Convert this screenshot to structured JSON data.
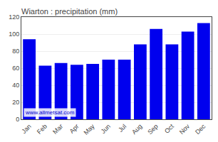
{
  "chart_data": {
    "type": "bar",
    "title": "Wiarton : precipitation (mm)",
    "categories": [
      "Jan",
      "Feb",
      "Mar",
      "Apr",
      "May",
      "Jun",
      "Jul",
      "Aug",
      "Sep",
      "Oct",
      "Nov",
      "Dec"
    ],
    "values": [
      94,
      63,
      66,
      64,
      65,
      70,
      70,
      88,
      106,
      88,
      103,
      113
    ],
    "color": "#0000ee",
    "ylim": [
      0,
      120
    ],
    "yticks": [
      0,
      20,
      40,
      60,
      80,
      100,
      120
    ],
    "grid": true,
    "annotations": [
      "www.allmetsat.com"
    ]
  }
}
